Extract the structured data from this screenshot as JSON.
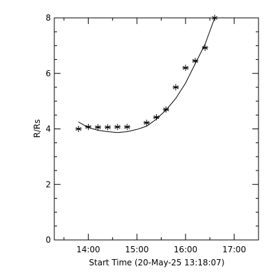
{
  "chart_data": {
    "type": "scatter",
    "xlabel": "Start Time (20-May-25 13:18:07)",
    "ylabel": "R/Rs",
    "x_ticks": [
      {
        "value": "13:30",
        "label": ""
      },
      {
        "value": "14:00",
        "label": "14:00"
      },
      {
        "value": "14:30",
        "label": ""
      },
      {
        "value": "15:00",
        "label": "15:00"
      },
      {
        "value": "15:30",
        "label": ""
      },
      {
        "value": "16:00",
        "label": "16:00"
      },
      {
        "value": "16:30",
        "label": ""
      },
      {
        "value": "17:00",
        "label": "17:00"
      }
    ],
    "xlim": [
      "13:18:07",
      "17:30"
    ],
    "ylim": [
      0,
      8
    ],
    "y_ticks": [
      0,
      2,
      4,
      6,
      8
    ],
    "grid": false,
    "legend": "none",
    "points": [
      {
        "x": "13:48",
        "y": 4.0
      },
      {
        "x": "14:00",
        "y": 4.07
      },
      {
        "x": "14:12",
        "y": 4.06
      },
      {
        "x": "14:24",
        "y": 4.06
      },
      {
        "x": "14:36",
        "y": 4.07
      },
      {
        "x": "14:48",
        "y": 4.07
      },
      {
        "x": "15:12",
        "y": 4.22
      },
      {
        "x": "15:24",
        "y": 4.42
      },
      {
        "x": "15:36",
        "y": 4.7
      },
      {
        "x": "15:48",
        "y": 5.5
      },
      {
        "x": "16:00",
        "y": 6.2
      },
      {
        "x": "16:12",
        "y": 6.45
      },
      {
        "x": "16:24",
        "y": 6.92
      },
      {
        "x": "16:36",
        "y": 8.0
      }
    ],
    "fit_curve": [
      {
        "x": "13:48",
        "y": 4.25
      },
      {
        "x": "14:00",
        "y": 4.05
      },
      {
        "x": "14:12",
        "y": 3.95
      },
      {
        "x": "14:24",
        "y": 3.9
      },
      {
        "x": "14:36",
        "y": 3.87
      },
      {
        "x": "14:48",
        "y": 3.9
      },
      {
        "x": "15:00",
        "y": 3.98
      },
      {
        "x": "15:12",
        "y": 4.1
      },
      {
        "x": "15:24",
        "y": 4.35
      },
      {
        "x": "15:36",
        "y": 4.68
      },
      {
        "x": "15:48",
        "y": 5.1
      },
      {
        "x": "16:00",
        "y": 5.65
      },
      {
        "x": "16:12",
        "y": 6.35
      },
      {
        "x": "16:24",
        "y": 7.05
      },
      {
        "x": "16:36",
        "y": 8.0
      }
    ],
    "colors": {
      "axis": "#000000",
      "marker": "#000000",
      "line": "#000000",
      "background": "#ffffff"
    }
  }
}
